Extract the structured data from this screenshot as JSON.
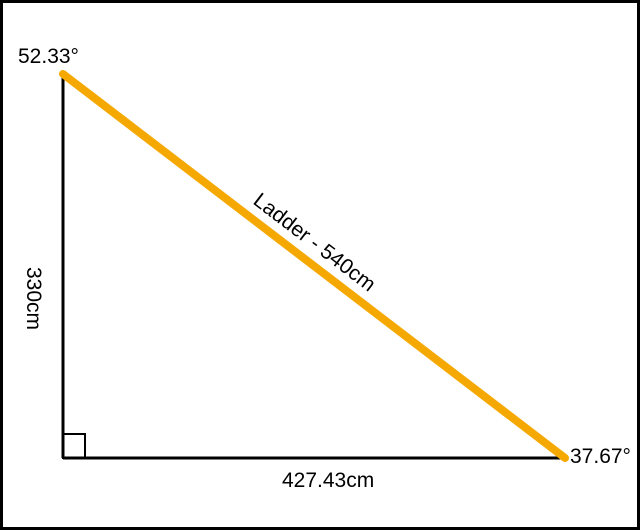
{
  "colors": {
    "background": "#ffffff",
    "frame": "#000000",
    "triangle_sides": "#000000",
    "ladder": "#f5a800"
  },
  "labels": {
    "top_angle": "52.33°",
    "bottom_right_angle": "37.67°",
    "vertical_side": "330cm",
    "horizontal_side": "427.43cm",
    "ladder": "Ladder - 540cm"
  },
  "icons": {
    "right_angle_marker": "right-angle-square"
  }
}
